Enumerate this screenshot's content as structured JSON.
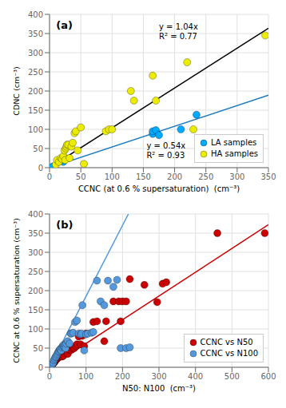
{
  "chart_data": [
    {
      "type": "scatter",
      "title": "(a)",
      "x_label": "CCNC (at 0.6 % supersaturation)  (cm⁻³)",
      "y_label": "CDNC (cm⁻³)",
      "xlim": [
        0,
        350
      ],
      "ylim": [
        0,
        400
      ],
      "xticks": [
        0,
        50,
        100,
        150,
        200,
        250,
        300,
        350
      ],
      "yticks": [
        0,
        50,
        100,
        150,
        200,
        250,
        300,
        350,
        400
      ],
      "grid": true,
      "legend": "lower right",
      "annotations": [
        "y = 1.04x\nR² = 0.77",
        "y = 0.54x\nR² = 0.93"
      ],
      "series": [
        {
          "name": "LA samples",
          "type": "scatter",
          "marker": "circle",
          "color": "#00aaff",
          "x": [
            5,
            22,
            25,
            165,
            165,
            170,
            175,
            210,
            235
          ],
          "values": [
            3,
            15,
            25,
            88,
            95,
            98,
            85,
            100,
            138
          ]
        },
        {
          "name": "HA samples",
          "type": "scatter",
          "marker": "circle",
          "color": "#ecec00",
          "x": [
            10,
            12,
            15,
            18,
            20,
            22,
            24,
            25,
            26,
            27,
            28,
            30,
            32,
            35,
            37,
            40,
            42,
            45,
            50,
            55,
            90,
            95,
            100,
            130,
            135,
            165,
            170,
            220,
            230,
            345
          ],
          "values": [
            8,
            20,
            15,
            25,
            22,
            30,
            45,
            20,
            50,
            55,
            60,
            60,
            25,
            55,
            65,
            90,
            95,
            45,
            105,
            10,
            95,
            100,
            100,
            200,
            175,
            240,
            175,
            275,
            100,
            345
          ]
        },
        {
          "type": "line",
          "line_style": "solid",
          "color": "#000000",
          "x": [
            0,
            350
          ],
          "values": [
            0,
            364
          ]
        },
        {
          "type": "line",
          "line_style": "solid",
          "color": "#1a7abf",
          "x": [
            0,
            350
          ],
          "values": [
            0,
            189
          ]
        }
      ]
    },
    {
      "type": "scatter",
      "title": "(b)",
      "x_label": "N50: N100  (cm⁻³)",
      "y_label": "CCNC at 0.6 % supersaturation (cm⁻³)",
      "xlim": [
        0,
        600
      ],
      "ylim": [
        0,
        400
      ],
      "xticks": [
        0,
        100,
        200,
        300,
        400,
        500,
        600
      ],
      "yticks": [
        0,
        50,
        100,
        150,
        200,
        250,
        300,
        350,
        400
      ],
      "grid": true,
      "legend": "lower right",
      "series": [
        {
          "name": "CCNC vs N50",
          "type": "scatter",
          "marker": "circle",
          "color": "#cc0000",
          "x": [
            5,
            7,
            9,
            10,
            12,
            14,
            15,
            16,
            18,
            20,
            22,
            23,
            25,
            28,
            30,
            32,
            35,
            38,
            40,
            42,
            44,
            46,
            50,
            55,
            58,
            60,
            62,
            65,
            68,
            72,
            75,
            80,
            85,
            90,
            95,
            100,
            120,
            130,
            150,
            155,
            175,
            190,
            195,
            200,
            210,
            220,
            260,
            295,
            310,
            320,
            460,
            590
          ],
          "values": [
            4,
            6,
            8,
            10,
            12,
            14,
            16,
            18,
            20,
            22,
            24,
            26,
            28,
            30,
            32,
            34,
            28,
            30,
            38,
            42,
            46,
            48,
            35,
            45,
            48,
            45,
            50,
            52,
            50,
            55,
            60,
            80,
            60,
            82,
            55,
            88,
            118,
            120,
            68,
            120,
            172,
            172,
            120,
            172,
            172,
            230,
            215,
            170,
            218,
            222,
            350,
            350
          ]
        },
        {
          "name": "CCNC vs N100",
          "type": "scatter",
          "marker": "circle",
          "color": "#5599dd",
          "x": [
            5,
            8,
            10,
            12,
            14,
            16,
            18,
            20,
            22,
            24,
            26,
            28,
            30,
            32,
            34,
            36,
            38,
            40,
            42,
            44,
            46,
            50,
            55,
            58,
            60,
            65,
            70,
            75,
            80,
            85,
            88,
            90,
            95,
            100,
            105,
            115,
            120,
            130,
            140,
            150,
            160,
            175,
            185,
            195,
            210,
            220
          ],
          "values": [
            4,
            8,
            12,
            18,
            22,
            26,
            28,
            32,
            36,
            40,
            42,
            46,
            48,
            44,
            52,
            55,
            58,
            54,
            58,
            50,
            62,
            68,
            62,
            88,
            88,
            90,
            118,
            122,
            88,
            86,
            88,
            162,
            44,
            86,
            88,
            90,
            92,
            226,
            172,
            162,
            226,
            210,
            228,
            50,
            50,
            52
          ]
        },
        {
          "type": "line",
          "line_style": "solid",
          "color": "#cc0000",
          "x": [
            0,
            600
          ],
          "values": [
            0,
            372
          ]
        },
        {
          "type": "line",
          "line_style": "solid",
          "color": "#5599dd",
          "x": [
            0,
            216.2162162162162
          ],
          "values": [
            0,
            400
          ]
        }
      ]
    }
  ]
}
